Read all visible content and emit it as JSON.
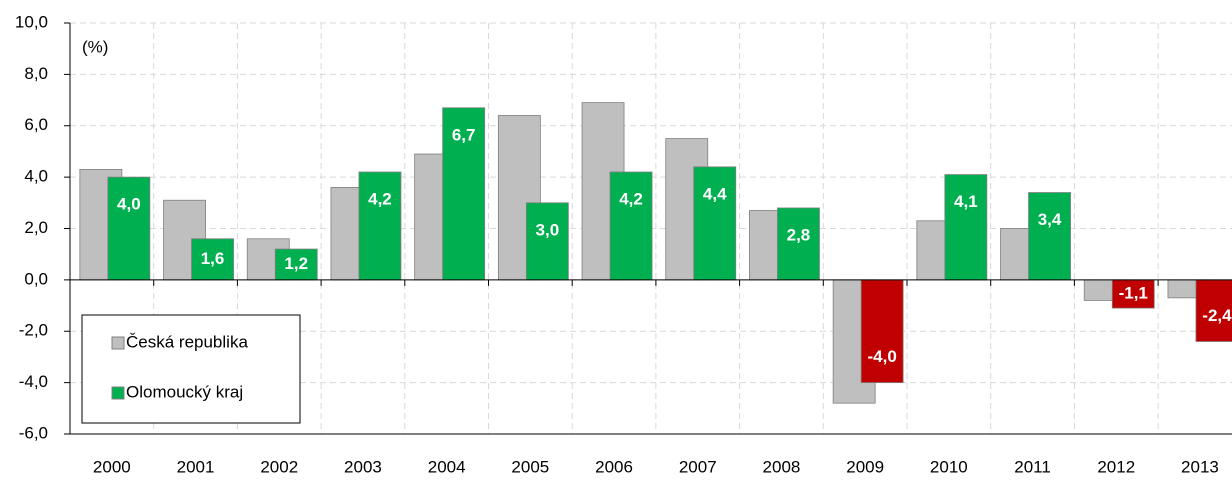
{
  "chart_data": {
    "type": "bar",
    "y_label": "(%)",
    "categories": [
      "2000",
      "2001",
      "2002",
      "2003",
      "2004",
      "2005",
      "2006",
      "2007",
      "2008",
      "2009",
      "2010",
      "2011",
      "2012",
      "2013"
    ],
    "series": [
      {
        "name": "Česká republika",
        "color": "#bfbfbf",
        "values": [
          4.3,
          3.1,
          1.6,
          3.6,
          4.9,
          6.4,
          6.9,
          5.5,
          2.7,
          -4.8,
          2.3,
          2.0,
          -0.8,
          -0.7
        ]
      },
      {
        "name": "Olomoucký kraj",
        "color": "#00b050",
        "negative_color": "#c00000",
        "values": [
          4.0,
          1.6,
          1.2,
          4.2,
          6.7,
          3.0,
          4.2,
          4.4,
          2.8,
          -4.0,
          4.1,
          3.4,
          -1.1,
          -2.4
        ],
        "value_labels": [
          "4,0",
          "1,6",
          "1,2",
          "4,2",
          "6,7",
          "3,0",
          "4,2",
          "4,4",
          "2,8",
          "-4,0",
          "4,1",
          "3,4",
          "-1,1",
          "-2,4"
        ]
      }
    ],
    "ylim": [
      -6,
      10
    ],
    "yticks": [
      {
        "value": -6,
        "label": "-6,0"
      },
      {
        "value": -4,
        "label": "-4,0"
      },
      {
        "value": -2,
        "label": "-2,0"
      },
      {
        "value": 0,
        "label": "0,0"
      },
      {
        "value": 2,
        "label": "2,0"
      },
      {
        "value": 4,
        "label": "4,0"
      },
      {
        "value": 6,
        "label": "6,0"
      },
      {
        "value": 8,
        "label": "8,0"
      },
      {
        "value": 10,
        "label": "10,0"
      }
    ],
    "grid": true,
    "legend": "lower left"
  }
}
